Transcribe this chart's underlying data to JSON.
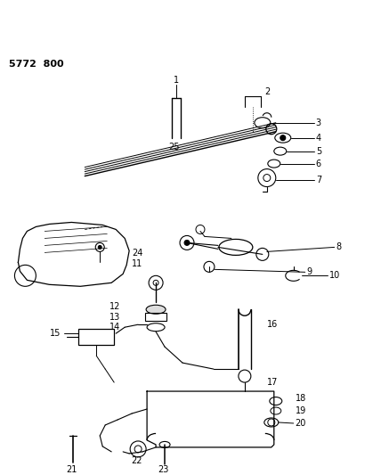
{
  "bg_color": "#ffffff",
  "diagram_id": "5772  800",
  "figsize": [
    4.28,
    5.33
  ],
  "dpi": 100
}
